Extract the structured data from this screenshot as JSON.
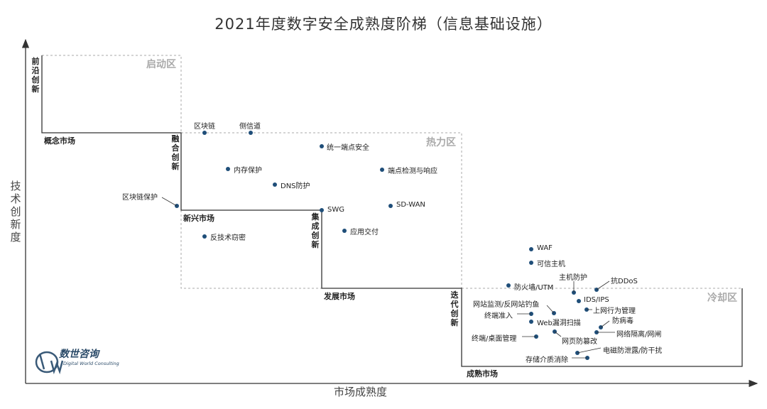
{
  "title": "2021年度数字安全成熟度阶梯（信息基础设施）",
  "axes": {
    "y_label": "技术创新度",
    "x_label": "市场成熟度"
  },
  "zones": {
    "startup": "启动区",
    "hot": "热力区",
    "cooling": "冷却区"
  },
  "stages": {
    "frontier": "前沿创新",
    "concept_market": "概念市场",
    "fusion": "融合创新",
    "emerging_market": "新兴市场",
    "integration": "集成创新",
    "developing_market": "发展市场",
    "iterative": "迭代创新",
    "mature_market": "成熟市场"
  },
  "items": {
    "blockchain": "区块链",
    "side_channel": "侧信道",
    "unified_endpoint": "统一端点安全",
    "memory_protection": "内存保护",
    "edr": "端点检测与响应",
    "dns_protection": "DNS防护",
    "blockchain_protection": "区块链保护",
    "swg": "SWG",
    "sdwan": "SD-WAN",
    "app_delivery": "应用交付",
    "anti_stealing": "反技术窃密",
    "waf": "WAF",
    "trusted_host": "可信主机",
    "host_protection": "主机防护",
    "anti_ddos": "抗DDoS",
    "firewall_utm": "防火墙/UTM",
    "ids_ips": "IDS/IPS",
    "web_monitoring": "网站监测/反网站钓鱼",
    "online_behavior": "上网行为管理",
    "terminal_access": "终端准入",
    "antivirus": "防病毒",
    "web_vuln_scan": "Web漏洞扫描",
    "network_isolation": "网络隔离/网闸",
    "terminal_desktop": "终端/桌面管理",
    "web_tamper": "网页防篡改",
    "emi_leakage": "电磁防泄露/防干扰",
    "storage_erase": "存储介质消除"
  },
  "logo": {
    "cn": "数世咨询",
    "en": "Digital World Consulting"
  },
  "colors": {
    "dot": "#1f4e79",
    "zone_border": "#aaaaaa",
    "step_line": "#333333",
    "axis": "#333333"
  }
}
